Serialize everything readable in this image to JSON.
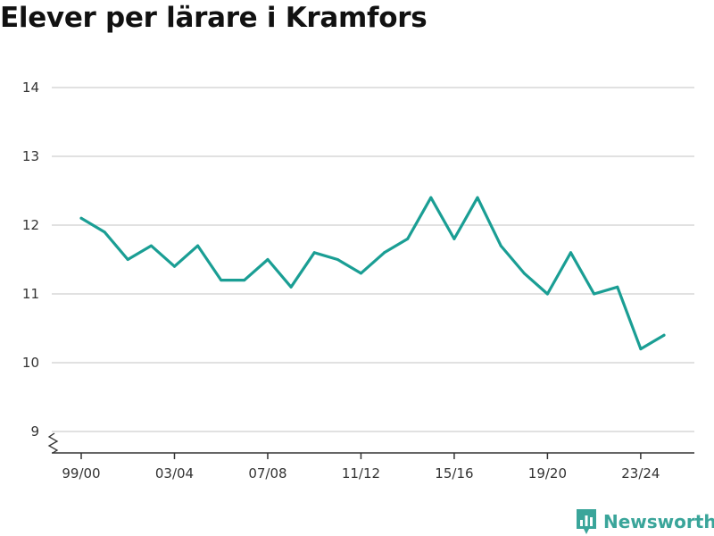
{
  "title": "Elever per lärare i Kramfors",
  "brand": {
    "name": "Newsworthy",
    "icon": "newsworthy-logo-icon",
    "color": "#3aa59a"
  },
  "chart_data": {
    "type": "line",
    "title": "Elever per lärare i Kramfors",
    "xlabel": "",
    "ylabel": "",
    "x": [
      "99/00",
      "00/01",
      "01/02",
      "02/03",
      "03/04",
      "04/05",
      "05/06",
      "06/07",
      "07/08",
      "08/09",
      "09/10",
      "10/11",
      "11/12",
      "12/13",
      "13/14",
      "14/15",
      "15/16",
      "16/17",
      "17/18",
      "18/19",
      "19/20",
      "20/21",
      "21/22",
      "22/23",
      "23/24",
      "24/25"
    ],
    "series": [
      {
        "name": "",
        "color": "#1a9e94",
        "values": [
          12.1,
          11.9,
          11.5,
          11.7,
          11.4,
          11.7,
          11.2,
          11.2,
          11.5,
          11.1,
          11.6,
          11.5,
          11.3,
          11.6,
          11.8,
          12.4,
          11.8,
          12.4,
          11.7,
          11.3,
          11.0,
          11.6,
          11.0,
          11.1,
          10.2,
          10.4
        ]
      }
    ],
    "x_tick_labels": [
      "99/00",
      "03/04",
      "07/08",
      "11/12",
      "15/16",
      "19/20",
      "23/24"
    ],
    "y_ticks": [
      9,
      10,
      11,
      12,
      13,
      14
    ],
    "ylim": [
      9,
      14
    ],
    "y_axis_break": true,
    "grid": true,
    "legend": "none"
  }
}
